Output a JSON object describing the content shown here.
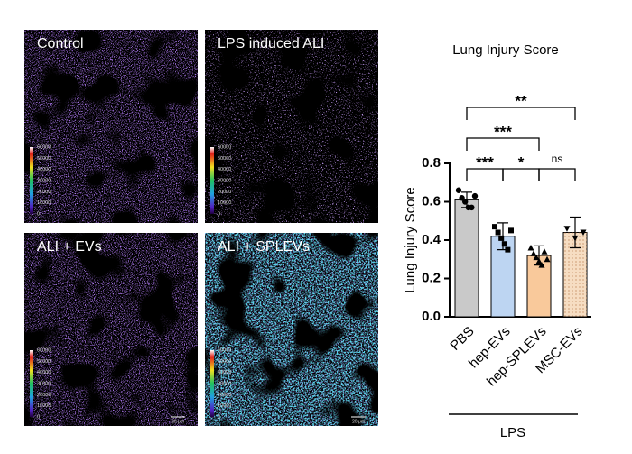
{
  "panels": [
    {
      "label": "Control",
      "style": "sparse"
    },
    {
      "label": "LPS induced ALI",
      "style": "faint"
    },
    {
      "label": "ALI + EVs",
      "style": "sparse"
    },
    {
      "label": "ALI + SPLEVs",
      "style": "bright"
    }
  ],
  "colorbar": {
    "ticks": [
      60000,
      50000,
      40000,
      30000,
      20000,
      10000,
      0
    ]
  },
  "scale_bar": "20 μm",
  "chart_data": {
    "type": "bar",
    "title": "Lung Injury Score",
    "y_label": "Lung Injury  Score",
    "categories": [
      "PBS",
      "hep-EVs",
      "hep-SPLEVs",
      "MSC-EVs"
    ],
    "values": [
      0.61,
      0.42,
      0.32,
      0.44
    ],
    "errors": [
      0.04,
      0.07,
      0.05,
      0.08
    ],
    "colors": [
      "#c9c9c9",
      "#bdd5f2",
      "#f9c99b",
      "#f6ddc2"
    ],
    "points": [
      [
        0.66,
        0.62,
        0.6,
        0.57,
        0.57,
        0.63
      ],
      [
        0.47,
        0.44,
        0.41,
        0.38,
        0.35,
        0.45
      ],
      [
        0.36,
        0.33,
        0.31,
        0.29,
        0.27,
        0.34,
        0.3
      ],
      [
        0.46,
        0.41,
        0.44
      ]
    ],
    "ylim": [
      0,
      0.8
    ],
    "yticks": [
      {
        "value": 0,
        "label": "0.0"
      },
      0.2,
      0.4,
      0.6,
      0.8
    ],
    "group_label": "LPS",
    "annotations": [
      {
        "label": "***",
        "between": [
          "PBS",
          "hep-EVs"
        ]
      },
      {
        "label": "*",
        "between": [
          "hep-EVs",
          "hep-SPLEVs"
        ]
      },
      {
        "label": "ns",
        "between": [
          "hep-SPLEVs",
          "MSC-EVs"
        ]
      },
      {
        "label": "***",
        "between": [
          "PBS",
          "hep-SPLEVs"
        ]
      },
      {
        "label": "**",
        "between": [
          "PBS",
          "MSC-EVs"
        ]
      }
    ]
  }
}
